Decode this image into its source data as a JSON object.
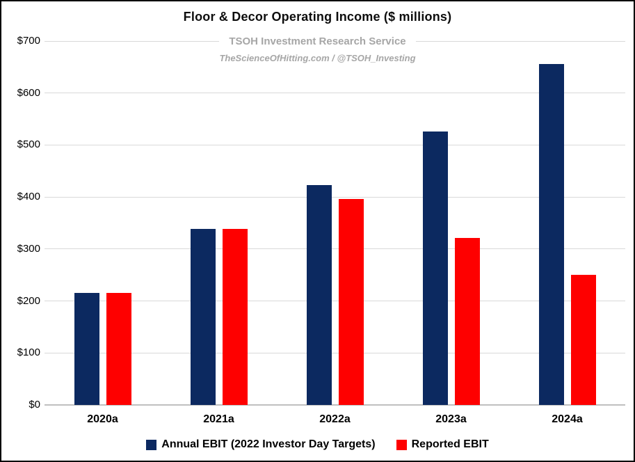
{
  "title": "Floor & Decor Operating Income ($ millions)",
  "watermark": {
    "line1": "TSOH Investment Research Service",
    "line2": "TheScienceOfHitting.com / @TSOH_Investing"
  },
  "colors": {
    "target_navy": "#0c2960",
    "reported_red": "#fe0000",
    "gridline": "#d9d9d9",
    "axis_line": "#bfbfbf",
    "watermark_gray": "#a6a6a6"
  },
  "chart_data": {
    "type": "bar",
    "title": "Floor & Decor Operating Income ($ millions)",
    "categories": [
      "2020a",
      "2021a",
      "2022a",
      "2023a",
      "2024a"
    ],
    "series": [
      {
        "name": "Annual EBIT (2022 Investor Day Targets)",
        "color": "#0c2960",
        "values": [
          215,
          338,
          423,
          526,
          656
        ]
      },
      {
        "name": "Reported EBIT",
        "color": "#fe0000",
        "values": [
          215,
          338,
          396,
          321,
          250
        ]
      }
    ],
    "xlabel": "",
    "ylabel": "",
    "ylim": [
      0,
      700
    ],
    "ytick_step": 100,
    "ytick_labels": [
      "$0",
      "$100",
      "$200",
      "$300",
      "$400",
      "$500",
      "$600",
      "$700"
    ],
    "grid": true,
    "legend_position": "bottom"
  }
}
